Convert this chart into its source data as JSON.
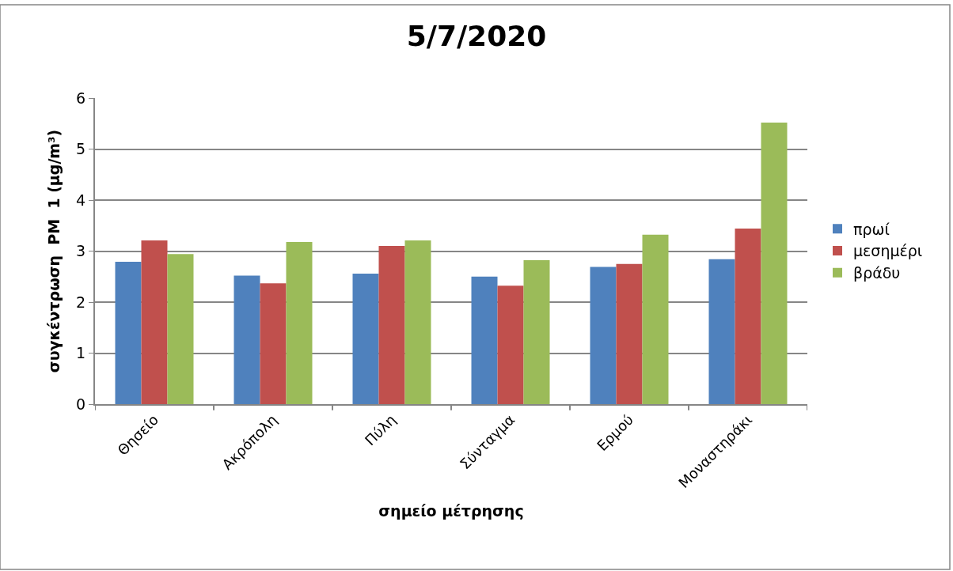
{
  "chart_data": {
    "type": "bar",
    "title": "5/7/2020",
    "xlabel": "σημείο μέτρησης",
    "ylabel": "συγκέντρωση  PM  1 (μg/m³)",
    "categories": [
      "Θησείο",
      "Ακρόπολη",
      "Πύλη",
      "Σύνταγμα",
      "Ερμού",
      "Μοναστηράκι"
    ],
    "series": [
      {
        "name": "πρωί",
        "color": "#4f81bd",
        "values": [
          2.79,
          2.52,
          2.56,
          2.5,
          2.69,
          2.84
        ]
      },
      {
        "name": "μεσημέρι",
        "color": "#c0504d",
        "values": [
          3.21,
          2.37,
          3.1,
          2.32,
          2.75,
          3.44
        ]
      },
      {
        "name": "βράδυ",
        "color": "#9bbb59",
        "values": [
          2.94,
          3.18,
          3.21,
          2.82,
          3.32,
          5.52
        ]
      }
    ],
    "ylim": [
      0,
      6
    ],
    "yticks": [
      0,
      1,
      2,
      3,
      4,
      5,
      6
    ],
    "grid": "y",
    "legend": "right"
  }
}
